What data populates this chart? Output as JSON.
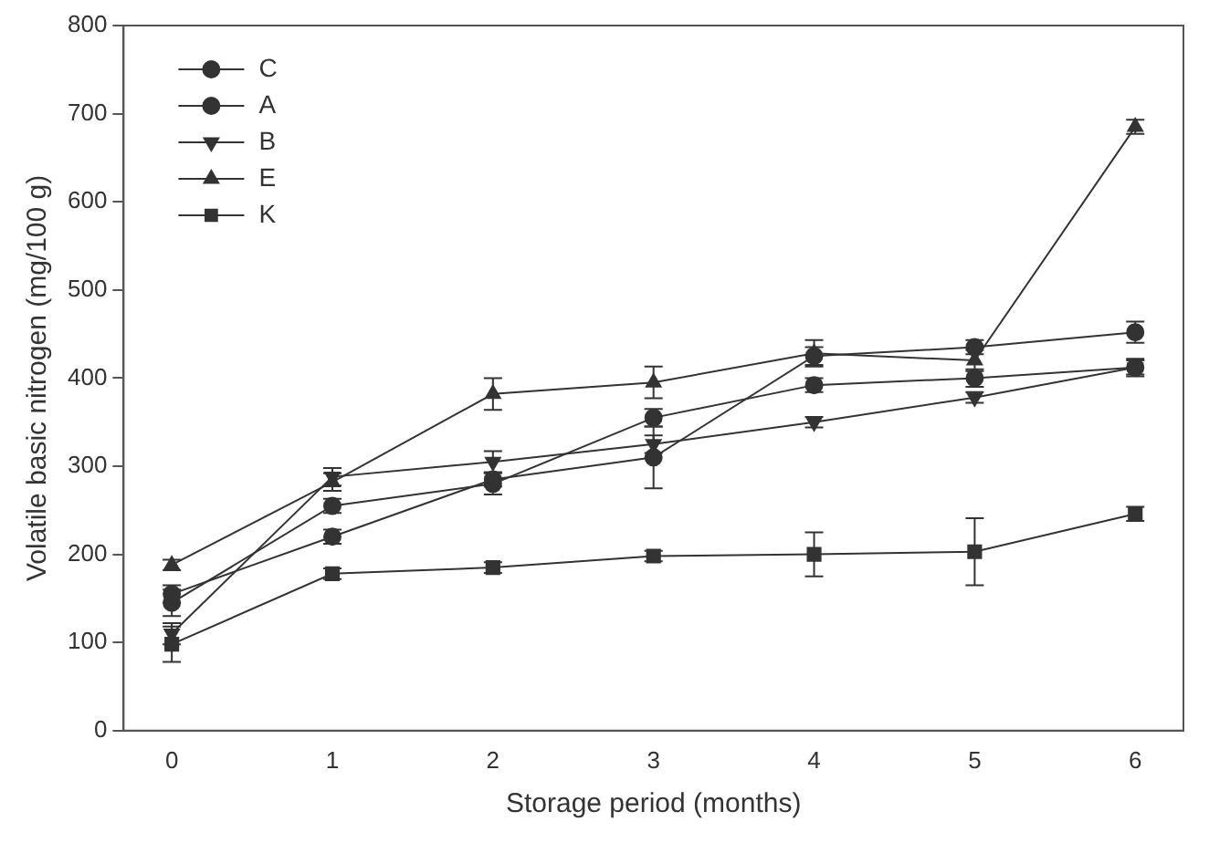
{
  "chart_data": {
    "type": "line",
    "xlabel": "Storage period (months)",
    "ylabel": "Volatile basic nitrogen (mg/100 g)",
    "x": [
      0,
      1,
      2,
      3,
      4,
      5,
      6
    ],
    "xlim": [
      -0.3,
      6.3
    ],
    "xticks": [
      0,
      1,
      2,
      3,
      4,
      5,
      6
    ],
    "ylim": [
      0,
      800
    ],
    "yticks": [
      0,
      100,
      200,
      300,
      400,
      500,
      600,
      700,
      800
    ],
    "grid": false,
    "legend": "top left",
    "line_style": "solid",
    "series": [
      {
        "name": "C",
        "color": "#333333",
        "marker": "circle",
        "values": [
          155,
          220,
          285,
          310,
          425,
          435,
          452
        ],
        "errors": [
          10,
          8,
          8,
          35,
          10,
          8,
          12
        ]
      },
      {
        "name": "A",
        "color": "#333333",
        "marker": "circle",
        "values": [
          145,
          255,
          280,
          355,
          392,
          400,
          412
        ],
        "errors": [
          15,
          8,
          12,
          10,
          8,
          10,
          8
        ]
      },
      {
        "name": "B",
        "color": "#333333",
        "marker": "triangle-down",
        "values": [
          110,
          288,
          305,
          325,
          350,
          378,
          412
        ],
        "errors": [
          12,
          10,
          12,
          10,
          6,
          6,
          10
        ]
      },
      {
        "name": "E",
        "color": "#333333",
        "marker": "triangle",
        "values": [
          188,
          282,
          382,
          395,
          428,
          420,
          685
        ],
        "errors": [
          6,
          10,
          18,
          18,
          15,
          12,
          8
        ]
      },
      {
        "name": "K",
        "color": "#333333",
        "marker": "square",
        "values": [
          98,
          178,
          185,
          198,
          200,
          203,
          246
        ],
        "errors": [
          20,
          6,
          6,
          6,
          25,
          38,
          8
        ]
      }
    ]
  }
}
